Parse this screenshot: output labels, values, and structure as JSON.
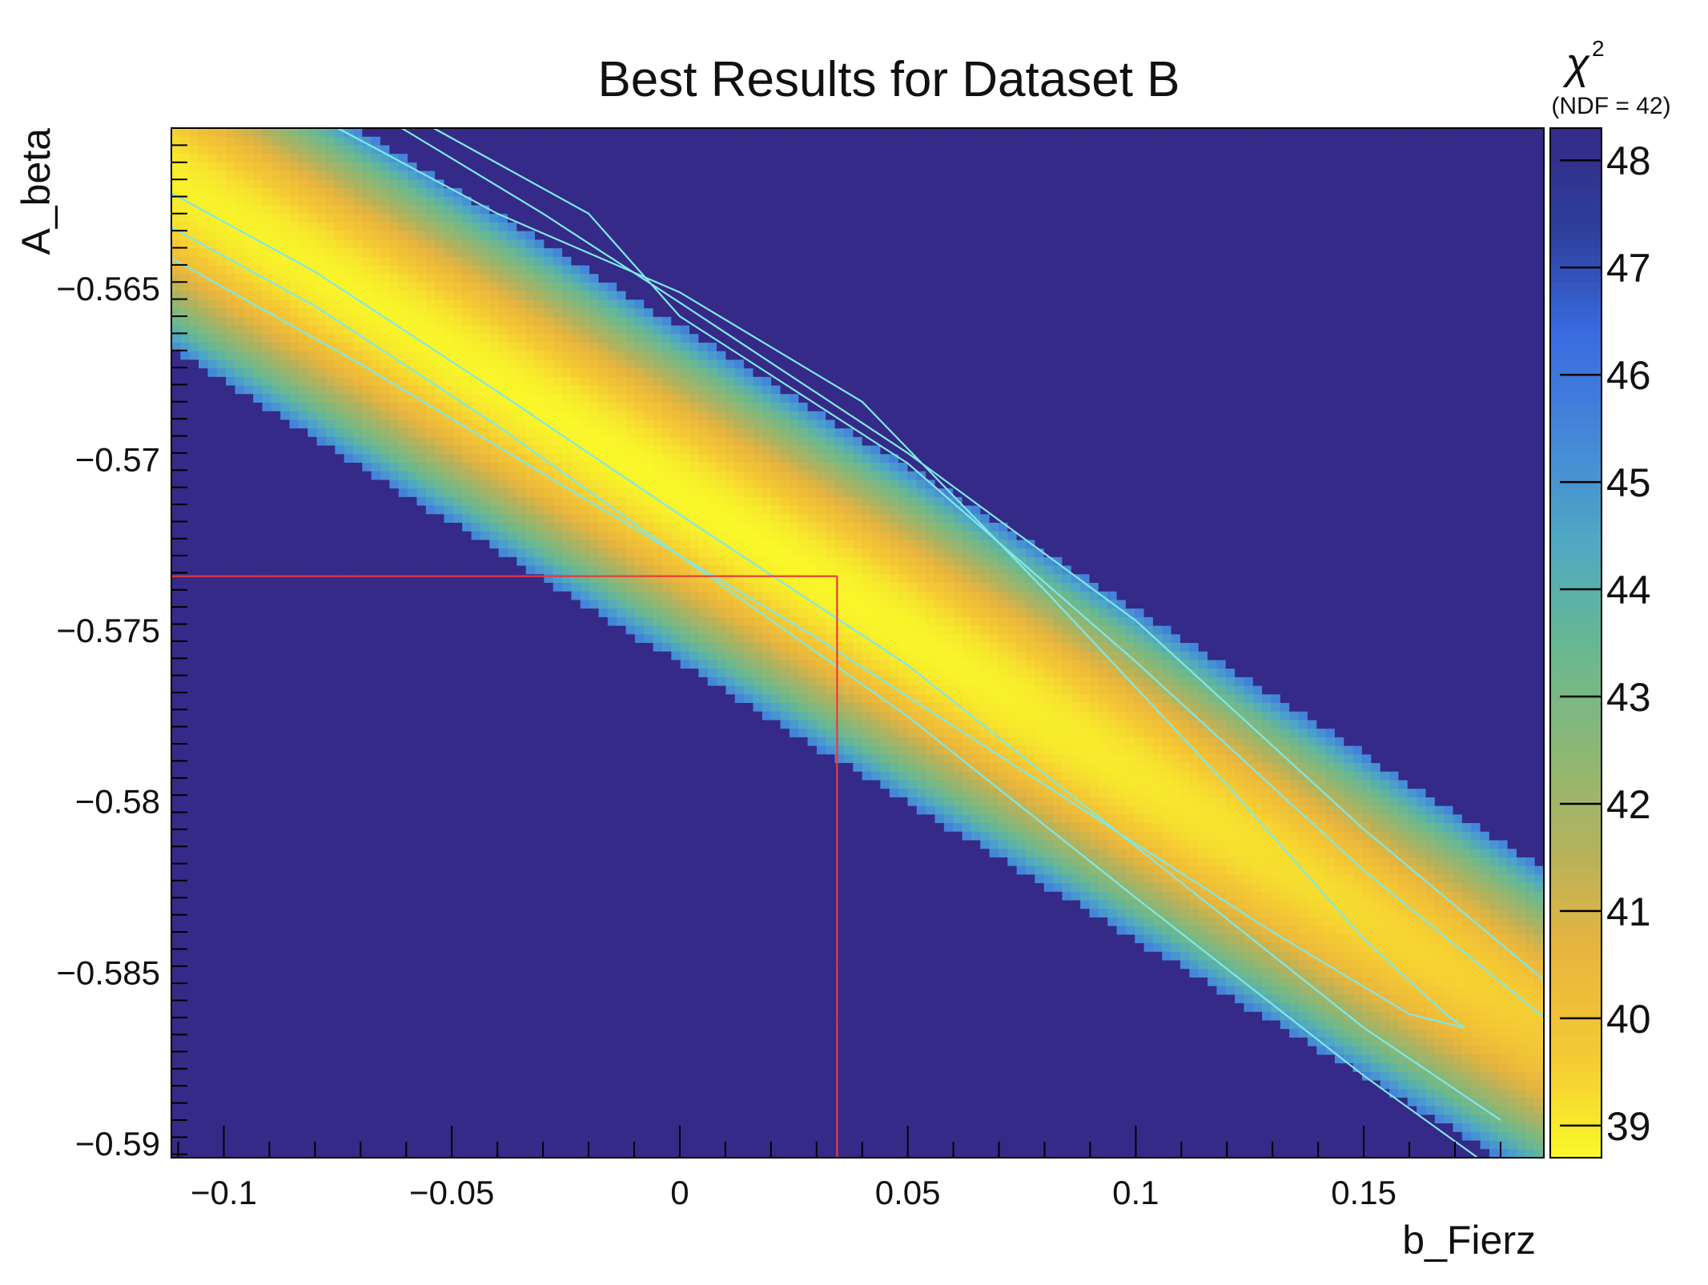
{
  "chart_data": {
    "type": "heatmap",
    "title": "Best Results for Dataset B",
    "xlabel": "b_Fierz",
    "ylabel": "A_beta",
    "xlim": [
      -0.1115,
      0.1895
    ],
    "ylim": [
      -0.5904,
      -0.5603
    ],
    "x_ticks": [
      -0.1,
      -0.05,
      0,
      0.05,
      0.1,
      0.15
    ],
    "x_tick_labels": [
      "−0.1",
      "−0.05",
      "0",
      "0.05",
      "0.1",
      "0.15"
    ],
    "y_ticks": [
      -0.565,
      -0.57,
      -0.575,
      -0.58,
      -0.585,
      -0.59
    ],
    "y_tick_labels": [
      "−0.565",
      "−0.57",
      "−0.575",
      "−0.58",
      "−0.585",
      "−0.59"
    ],
    "colorbar": {
      "title": "χ",
      "title_superscript": "2",
      "subtitle": "(NDF = 42)",
      "range": [
        38.7,
        48.3
      ],
      "ticks": [
        39,
        40,
        41,
        42,
        43,
        44,
        45,
        46,
        47,
        48
      ],
      "palette": [
        "#f9f929",
        "#f5c934",
        "#e8b53d",
        "#b5b25b",
        "#8bb776",
        "#67b893",
        "#4fa8c4",
        "#4487d9",
        "#3a6be0",
        "#2d3f9c",
        "#352a87"
      ]
    },
    "surface": {
      "description_free": true,
      "min_chi2": 38.75,
      "valley_slope": -0.0814,
      "valley_point": [
        0.03,
        -0.5734
      ],
      "grid_step_x": 0.002,
      "grid_step_y": 0.00025
    },
    "contours": [
      {
        "level": 40.0,
        "color": "#7fe8e8",
        "points": [
          [
            -0.075,
            -0.5603
          ],
          [
            -0.04,
            -0.5628
          ],
          [
            0.0,
            -0.5651
          ],
          [
            0.04,
            -0.5683
          ],
          [
            0.08,
            -0.5738
          ],
          [
            0.12,
            -0.5795
          ],
          [
            0.15,
            -0.584
          ],
          [
            0.168,
            -0.5862
          ],
          [
            0.172,
            -0.5866
          ],
          [
            0.16,
            -0.5862
          ],
          [
            0.13,
            -0.5838
          ],
          [
            0.08,
            -0.5795
          ],
          [
            0.03,
            -0.5752
          ],
          [
            -0.02,
            -0.5712
          ],
          [
            -0.07,
            -0.5672
          ],
          [
            -0.1115,
            -0.5641
          ]
        ]
      },
      {
        "level": 41.0,
        "color": "#7fe8e8",
        "points": [
          [
            -0.061,
            -0.5603
          ],
          [
            -0.03,
            -0.5628
          ],
          [
            0.0,
            -0.5654
          ],
          [
            0.05,
            -0.5698
          ],
          [
            0.1,
            -0.5747
          ],
          [
            0.15,
            -0.5808
          ],
          [
            0.1895,
            -0.5852
          ]
        ]
      },
      {
        "level": 42.0,
        "color": "#7fe8e8",
        "points": [
          [
            -0.054,
            -0.5603
          ],
          [
            -0.02,
            -0.5628
          ],
          [
            0.0,
            -0.5658
          ],
          [
            0.05,
            -0.5701
          ],
          [
            0.1,
            -0.5759
          ],
          [
            0.15,
            -0.582
          ],
          [
            0.1895,
            -0.5863
          ]
        ]
      },
      {
        "level": 41.0,
        "color": "#7fe8e8",
        "points": [
          [
            -0.1115,
            -0.5622
          ],
          [
            -0.08,
            -0.5645
          ],
          [
            -0.04,
            -0.568
          ],
          [
            0.0,
            -0.5716
          ],
          [
            0.05,
            -0.576
          ],
          [
            0.1,
            -0.5813
          ],
          [
            0.15,
            -0.5866
          ],
          [
            0.18,
            -0.5893
          ]
        ]
      },
      {
        "level": 42.0,
        "color": "#7fe8e8",
        "points": [
          [
            -0.1115,
            -0.5632
          ],
          [
            -0.08,
            -0.5655
          ],
          [
            -0.04,
            -0.569
          ],
          [
            0.0,
            -0.5728
          ],
          [
            0.05,
            -0.5775
          ],
          [
            0.1,
            -0.5828
          ],
          [
            0.15,
            -0.588
          ],
          [
            0.175,
            -0.5904
          ]
        ]
      }
    ],
    "best_fit_marker": {
      "x": 0.0345,
      "y": -0.5734,
      "color": "#e83a3a"
    },
    "grid": false,
    "legend": "none"
  }
}
